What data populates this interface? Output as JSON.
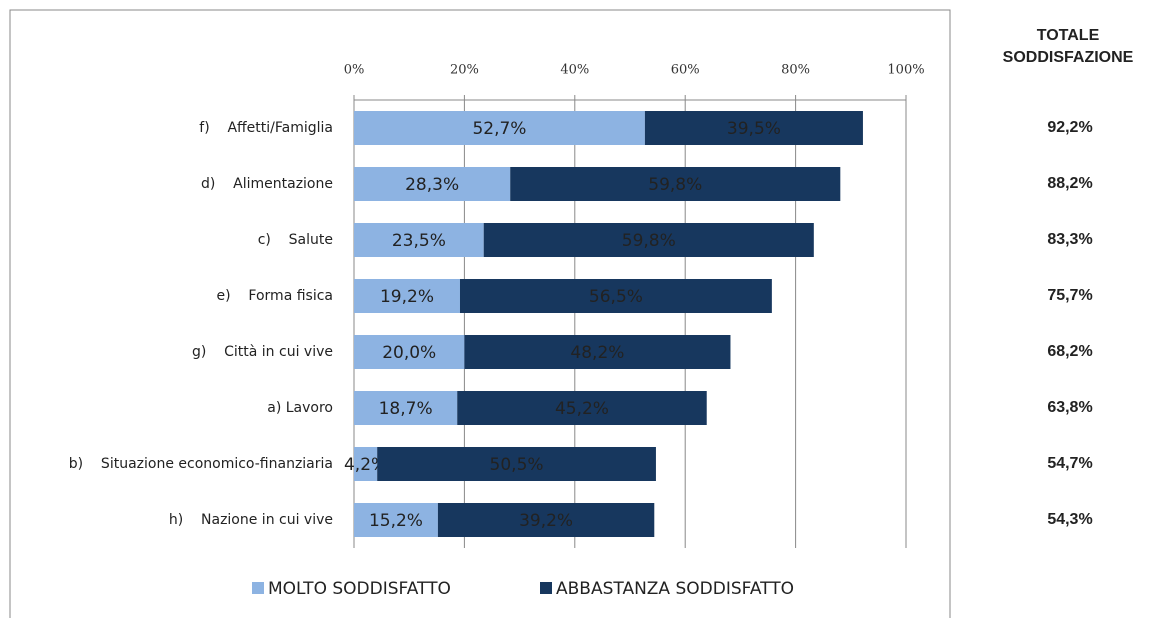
{
  "chart_data": {
    "type": "stacked-bar-horizontal",
    "categories": [
      "f)    Affetti/Famiglia",
      "d)    Alimentazione",
      "c)    Salute",
      "e)    Forma fisica",
      "g)    Città in cui vive",
      "a) Lavoro",
      "b)    Situazione economico-finanziaria",
      "h)    Nazione in cui vive"
    ],
    "series": [
      {
        "name": "MOLTO SODDISFATTO",
        "color": "#8db3e2",
        "values": [
          52.7,
          28.3,
          23.5,
          19.2,
          20.0,
          18.7,
          4.2,
          15.2
        ],
        "value_labels": [
          "52,7%",
          "28,3%",
          "23,5%",
          "19,2%",
          "20,0%",
          "18,7%",
          "4,2%",
          "15,2%"
        ]
      },
      {
        "name": "ABBASTANZA SODDISFATTO",
        "color": "#17375e",
        "values": [
          39.5,
          59.8,
          59.8,
          56.5,
          48.2,
          45.2,
          50.5,
          39.2
        ],
        "value_labels": [
          "39,5%",
          "59,8%",
          "59,8%",
          "56,5%",
          "48,2%",
          "45,2%",
          "50,5%",
          "39,2%"
        ]
      }
    ],
    "xlim": [
      0,
      100
    ],
    "xticks": [
      {
        "value": 0,
        "label": "0%"
      },
      {
        "value": 20,
        "label": "20%"
      },
      {
        "value": 40,
        "label": "40%"
      },
      {
        "value": 60,
        "label": "60%"
      },
      {
        "value": 80,
        "label": "80%"
      },
      {
        "value": 100,
        "label": "100%"
      }
    ],
    "grid": true,
    "legend": "bottom",
    "totals": {
      "title": [
        "TOTALE",
        "SODDISFAZIONE"
      ],
      "values": [
        92.2,
        88.2,
        83.3,
        75.7,
        68.2,
        63.8,
        54.7,
        54.3
      ],
      "value_labels": [
        "92,2%",
        "88,2%",
        "83,3%",
        "75,7%",
        "68,2%",
        "63,8%",
        "54,7%",
        "54,3%"
      ]
    }
  }
}
